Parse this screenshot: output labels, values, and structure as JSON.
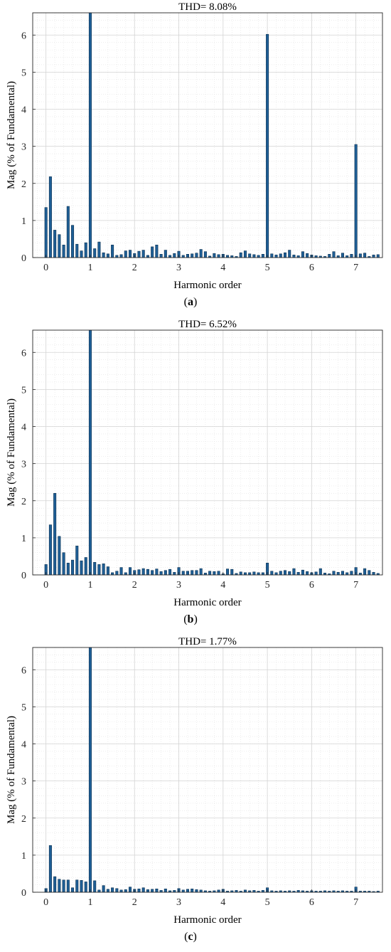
{
  "chart_data": [
    {
      "type": "bar",
      "panel_label": "a",
      "title": "THD= 8.08%",
      "xlabel": "Harmonic order",
      "ylabel": "Mag (% of Fundamental)",
      "xlim": [
        -0.3,
        7.6
      ],
      "ylim": [
        0,
        6.6
      ],
      "xticks": [
        0,
        1,
        2,
        3,
        4,
        5,
        6,
        7
      ],
      "yticks": [
        0,
        1,
        2,
        3,
        4,
        5,
        6
      ],
      "grid": true,
      "bar_color": "#1f5f96",
      "x": [
        0,
        0.1,
        0.2,
        0.3,
        0.4,
        0.5,
        0.6,
        0.7,
        0.8,
        0.9,
        1,
        1.1,
        1.2,
        1.3,
        1.4,
        1.5,
        1.6,
        1.7,
        1.8,
        1.9,
        2,
        2.1,
        2.2,
        2.3,
        2.4,
        2.5,
        2.6,
        2.7,
        2.8,
        2.9,
        3,
        3.1,
        3.2,
        3.3,
        3.4,
        3.5,
        3.6,
        3.7,
        3.8,
        3.9,
        4,
        4.1,
        4.2,
        4.3,
        4.4,
        4.5,
        4.6,
        4.7,
        4.8,
        4.9,
        5,
        5.1,
        5.2,
        5.3,
        5.4,
        5.5,
        5.6,
        5.7,
        5.8,
        5.9,
        6,
        6.1,
        6.2,
        6.3,
        6.4,
        6.5,
        6.6,
        6.7,
        6.8,
        6.9,
        7,
        7.1,
        7.2,
        7.3,
        7.4,
        7.5
      ],
      "values": [
        1.35,
        2.18,
        0.74,
        0.62,
        0.34,
        1.38,
        0.87,
        0.36,
        0.18,
        0.4,
        6.6,
        0.24,
        0.42,
        0.13,
        0.1,
        0.34,
        0.06,
        0.08,
        0.18,
        0.2,
        0.11,
        0.17,
        0.2,
        0.06,
        0.29,
        0.34,
        0.09,
        0.2,
        0.06,
        0.11,
        0.17,
        0.06,
        0.09,
        0.1,
        0.12,
        0.22,
        0.16,
        0.04,
        0.11,
        0.08,
        0.09,
        0.06,
        0.05,
        0.03,
        0.13,
        0.18,
        0.1,
        0.08,
        0.06,
        0.09,
        6.02,
        0.1,
        0.07,
        0.1,
        0.13,
        0.2,
        0.07,
        0.05,
        0.16,
        0.11,
        0.07,
        0.05,
        0.04,
        0.03,
        0.09,
        0.16,
        0.05,
        0.12,
        0.05,
        0.09,
        3.05,
        0.1,
        0.12,
        0.03,
        0.07,
        0.08
      ]
    },
    {
      "type": "bar",
      "panel_label": "b",
      "title": "THD= 6.52%",
      "xlabel": "Harmonic order",
      "ylabel": "Mag (% of Fundamental)",
      "xlim": [
        -0.3,
        7.6
      ],
      "ylim": [
        0,
        6.6
      ],
      "xticks": [
        0,
        1,
        2,
        3,
        4,
        5,
        6,
        7
      ],
      "yticks": [
        0,
        1,
        2,
        3,
        4,
        5,
        6
      ],
      "grid": true,
      "bar_color": "#1f5f96",
      "x": [
        0,
        0.1,
        0.2,
        0.3,
        0.4,
        0.5,
        0.6,
        0.7,
        0.8,
        0.9,
        1,
        1.1,
        1.2,
        1.3,
        1.4,
        1.5,
        1.6,
        1.7,
        1.8,
        1.9,
        2,
        2.1,
        2.2,
        2.3,
        2.4,
        2.5,
        2.6,
        2.7,
        2.8,
        2.9,
        3,
        3.1,
        3.2,
        3.3,
        3.4,
        3.5,
        3.6,
        3.7,
        3.8,
        3.9,
        4,
        4.1,
        4.2,
        4.3,
        4.4,
        4.5,
        4.6,
        4.7,
        4.8,
        4.9,
        5,
        5.1,
        5.2,
        5.3,
        5.4,
        5.5,
        5.6,
        5.7,
        5.8,
        5.9,
        6,
        6.1,
        6.2,
        6.3,
        6.4,
        6.5,
        6.6,
        6.7,
        6.8,
        6.9,
        7,
        7.1,
        7.2,
        7.3,
        7.4,
        7.5
      ],
      "values": [
        0.28,
        1.35,
        2.2,
        1.04,
        0.6,
        0.32,
        0.4,
        0.78,
        0.38,
        0.47,
        6.6,
        0.34,
        0.28,
        0.3,
        0.22,
        0.06,
        0.1,
        0.2,
        0.06,
        0.2,
        0.12,
        0.14,
        0.17,
        0.15,
        0.12,
        0.16,
        0.09,
        0.12,
        0.15,
        0.07,
        0.2,
        0.1,
        0.1,
        0.12,
        0.12,
        0.17,
        0.05,
        0.1,
        0.09,
        0.1,
        0.03,
        0.16,
        0.15,
        0.04,
        0.08,
        0.06,
        0.06,
        0.08,
        0.06,
        0.06,
        0.32,
        0.1,
        0.06,
        0.1,
        0.12,
        0.09,
        0.17,
        0.07,
        0.13,
        0.09,
        0.06,
        0.08,
        0.17,
        0.05,
        0.03,
        0.1,
        0.07,
        0.1,
        0.06,
        0.1,
        0.2,
        0.05,
        0.17,
        0.12,
        0.07,
        0.04
      ]
    },
    {
      "type": "bar",
      "panel_label": "c",
      "title": "THD= 1.77%",
      "xlabel": "Harmonic order",
      "ylabel": "Mag (% of Fundamental)",
      "xlim": [
        -0.3,
        7.6
      ],
      "ylim": [
        0,
        6.6
      ],
      "xticks": [
        0,
        1,
        2,
        3,
        4,
        5,
        6,
        7
      ],
      "yticks": [
        0,
        1,
        2,
        3,
        4,
        5,
        6
      ],
      "grid": true,
      "bar_color": "#1f5f96",
      "x": [
        0,
        0.1,
        0.2,
        0.3,
        0.4,
        0.5,
        0.6,
        0.7,
        0.8,
        0.9,
        1,
        1.1,
        1.2,
        1.3,
        1.4,
        1.5,
        1.6,
        1.7,
        1.8,
        1.9,
        2,
        2.1,
        2.2,
        2.3,
        2.4,
        2.5,
        2.6,
        2.7,
        2.8,
        2.9,
        3,
        3.1,
        3.2,
        3.3,
        3.4,
        3.5,
        3.6,
        3.7,
        3.8,
        3.9,
        4,
        4.1,
        4.2,
        4.3,
        4.4,
        4.5,
        4.6,
        4.7,
        4.8,
        4.9,
        5,
        5.1,
        5.2,
        5.3,
        5.4,
        5.5,
        5.6,
        5.7,
        5.8,
        5.9,
        6,
        6.1,
        6.2,
        6.3,
        6.4,
        6.5,
        6.6,
        6.7,
        6.8,
        6.9,
        7,
        7.1,
        7.2,
        7.3,
        7.4,
        7.5
      ],
      "values": [
        0.1,
        1.26,
        0.42,
        0.35,
        0.33,
        0.33,
        0.12,
        0.33,
        0.32,
        0.28,
        6.6,
        0.31,
        0.06,
        0.18,
        0.08,
        0.12,
        0.1,
        0.06,
        0.07,
        0.14,
        0.08,
        0.09,
        0.12,
        0.07,
        0.08,
        0.09,
        0.05,
        0.09,
        0.04,
        0.05,
        0.1,
        0.06,
        0.08,
        0.09,
        0.07,
        0.06,
        0.04,
        0.03,
        0.04,
        0.06,
        0.08,
        0.03,
        0.04,
        0.05,
        0.03,
        0.06,
        0.04,
        0.05,
        0.03,
        0.05,
        0.12,
        0.04,
        0.03,
        0.04,
        0.03,
        0.04,
        0.03,
        0.05,
        0.04,
        0.03,
        0.04,
        0.03,
        0.03,
        0.04,
        0.03,
        0.04,
        0.03,
        0.04,
        0.03,
        0.03,
        0.14,
        0.03,
        0.03,
        0.03,
        0.02,
        0.03
      ]
    }
  ]
}
